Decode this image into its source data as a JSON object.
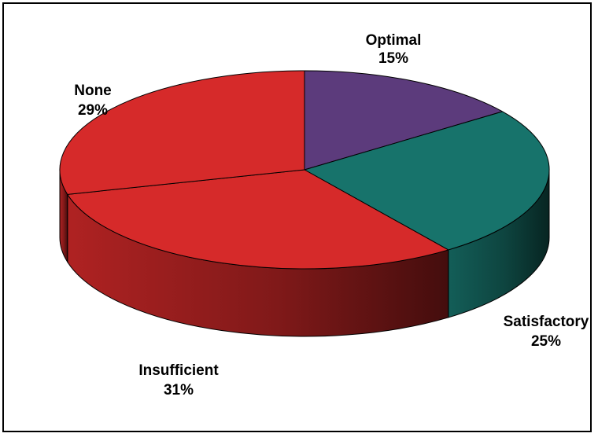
{
  "chart_data": {
    "type": "pie",
    "title": "",
    "legend": "none",
    "slices": [
      {
        "label": "Optimal",
        "value": 15,
        "value_label": "15%",
        "color": "#5c3b7c"
      },
      {
        "label": "Satisfactory",
        "value": 25,
        "value_label": "25%",
        "color": "#17736b"
      },
      {
        "label": "Insufficient",
        "value": 31,
        "value_label": "31%",
        "color": "#d62a2a"
      },
      {
        "label": "None",
        "value": 29,
        "value_label": "29%",
        "color": "#d62a2a"
      }
    ]
  }
}
